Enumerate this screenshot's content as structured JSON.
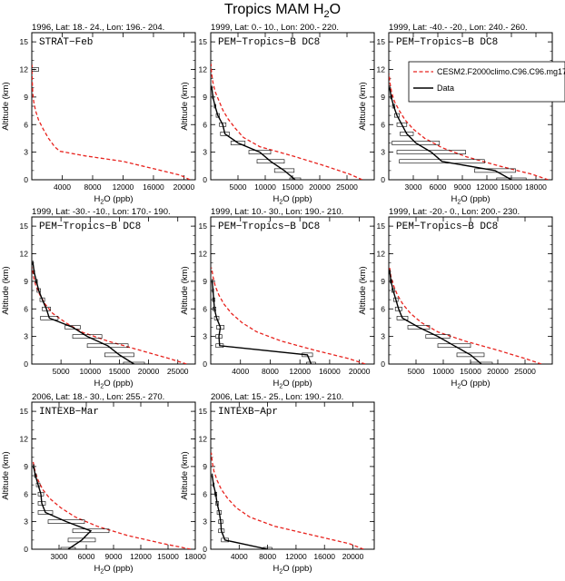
{
  "page": {
    "title_main": "Tropics MAM H",
    "title_sub": "2",
    "title_tail": "O"
  },
  "legend": {
    "model": {
      "label": "CESM2.F2000climo.C96.C96.mg17",
      "color": "#e8231e"
    },
    "obs": {
      "label": "Data",
      "color": "#000000"
    }
  },
  "chart_data": [
    {
      "type": "line",
      "title": "1996, Lat: 18.- 24., Lon: 196.- 204.",
      "label": "STRAT−Feb",
      "xlabel_main": "H",
      "xlabel_sub": "2",
      "xlabel_tail": "O (ppb)",
      "ylabel": "Altitude (km)",
      "xlim": [
        0,
        21500
      ],
      "ylim": [
        0,
        16
      ],
      "xticks": [
        4000,
        8000,
        12000,
        16000,
        20000
      ],
      "yticks": [
        0,
        3,
        6,
        9,
        12,
        15
      ],
      "model": {
        "x": [
          20800,
          19500,
          16000,
          12000,
          7000,
          3700,
          3000,
          2200,
          1500,
          900,
          500,
          250,
          120,
          50,
          20
        ],
        "y": [
          0,
          0.5,
          1.2,
          2,
          2.6,
          3.1,
          3.6,
          4.5,
          5.5,
          6.5,
          7.5,
          8.5,
          9.5,
          11,
          12.5
        ]
      },
      "data": {
        "x": [
          300
        ],
        "y": [
          12
        ],
        "err": [
          600
        ]
      }
    },
    {
      "type": "line",
      "title": "1999, Lat: 0.- 10., Lon: 200.- 220.",
      "label": "PEM−Tropics−B DC8",
      "xlabel_main": "H",
      "xlabel_sub": "2",
      "xlabel_tail": "O (ppb)",
      "ylabel": "Altitude (km)",
      "xlim": [
        0,
        30000
      ],
      "ylim": [
        0,
        16
      ],
      "xticks": [
        5000,
        10000,
        15000,
        20000,
        25000
      ],
      "yticks": [
        0,
        3,
        6,
        9,
        12,
        15
      ],
      "model": {
        "x": [
          27800,
          25500,
          21000,
          15000,
          9000,
          6000,
          4500,
          3200,
          2200,
          1500,
          800,
          400,
          150,
          50
        ],
        "y": [
          0,
          0.6,
          1.5,
          2.6,
          3.6,
          4.6,
          5.6,
          6.6,
          7.6,
          8.6,
          9.6,
          10.6,
          11.6,
          12.6
        ]
      },
      "data": {
        "x": [
          15500,
          13500,
          11000,
          9000,
          5000,
          2600,
          2200,
          1300,
          800,
          400,
          200
        ],
        "y": [
          0,
          1,
          2,
          3,
          4,
          5,
          6,
          7,
          8,
          9,
          10
        ],
        "err": [
          1000,
          1800,
          2500,
          2000,
          1300,
          800,
          600,
          300,
          150,
          80,
          50
        ]
      }
    },
    {
      "type": "line",
      "title": "1999, Lat: -40.- -20., Lon: 240.- 260.",
      "label": "PEM−Tropics−B DC8",
      "xlabel_main": "H",
      "xlabel_sub": "2",
      "xlabel_tail": "O (ppb)",
      "ylabel": "Altitude (km)",
      "xlim": [
        0,
        20000
      ],
      "ylim": [
        0,
        16
      ],
      "xticks": [
        3000,
        6000,
        9000,
        12000,
        15000,
        18000
      ],
      "yticks": [
        0,
        3,
        6,
        9,
        12,
        15
      ],
      "model": {
        "x": [
          19500,
          17500,
          13500,
          9500,
          6500,
          4400,
          3000,
          2000,
          1300,
          700,
          350,
          150,
          50
        ],
        "y": [
          0,
          0.6,
          1.5,
          2.5,
          3.5,
          4.5,
          5.5,
          6.5,
          7.5,
          8.5,
          9.5,
          10.5,
          11.5
        ]
      },
      "data": {
        "x": [
          15000,
          13000,
          6500,
          5200,
          3300,
          2200,
          1600,
          1000,
          600,
          300,
          100
        ],
        "y": [
          0,
          1,
          2,
          3,
          4,
          5,
          6,
          7,
          8,
          9,
          10
        ],
        "err": [
          1800,
          2500,
          5200,
          4200,
          2900,
          800,
          600,
          300,
          150,
          80,
          50
        ]
      }
    },
    {
      "type": "line",
      "title": "1999, Lat: -30.- -10., Lon: 170.- 190.",
      "label": "PEM−Tropics−B DC8",
      "xlabel_main": "H",
      "xlabel_sub": "2",
      "xlabel_tail": "O (ppb)",
      "ylabel": "Altitude (km)",
      "xlim": [
        0,
        28000
      ],
      "ylim": [
        0,
        16
      ],
      "xticks": [
        5000,
        10000,
        15000,
        20000,
        25000
      ],
      "yticks": [
        0,
        3,
        6,
        9,
        12,
        15
      ],
      "model": {
        "x": [
          26500,
          23500,
          18500,
          13000,
          8500,
          5800,
          3600,
          2300,
          1400,
          700,
          300,
          100
        ],
        "y": [
          0,
          0.6,
          1.5,
          2.5,
          3.5,
          4.5,
          5.5,
          6.5,
          7.5,
          8.5,
          9.5,
          10.5
        ]
      },
      "data": {
        "x": [
          17500,
          15000,
          13000,
          9500,
          7000,
          3000,
          2500,
          1800,
          1200,
          800,
          400,
          200
        ],
        "y": [
          0,
          1,
          2,
          3,
          4,
          5,
          6,
          7,
          8,
          9,
          10,
          11
        ],
        "err": [
          1800,
          2500,
          3500,
          2500,
          1300,
          1500,
          700,
          400,
          300,
          150,
          80,
          50
        ]
      }
    },
    {
      "type": "line",
      "title": "1999, Lat: 10.- 30., Lon: 190.- 210.",
      "label": "PEM−Tropics−B DC8",
      "xlabel_main": "H",
      "xlabel_sub": "2",
      "xlabel_tail": "O (ppb)",
      "ylabel": "Altitude (km)",
      "xlim": [
        0,
        22000
      ],
      "ylim": [
        0,
        16
      ],
      "xticks": [
        4000,
        8000,
        12000,
        16000,
        20000
      ],
      "yticks": [
        0,
        3,
        6,
        9,
        12,
        15
      ],
      "model": {
        "x": [
          20800,
          18500,
          14000,
          9500,
          6200,
          4200,
          2800,
          1800,
          1100,
          600,
          300,
          100
        ],
        "y": [
          0,
          0.6,
          1.5,
          2.5,
          3.5,
          4.5,
          5.5,
          6.5,
          7.5,
          8.5,
          9.5,
          10.5
        ]
      },
      "data": {
        "x": [
          13500,
          13000,
          1200,
          1100,
          1300,
          800,
          500,
          400,
          300,
          200
        ],
        "y": [
          0,
          1,
          2,
          3,
          4,
          5,
          6,
          7,
          8,
          9
        ],
        "err": [
          600,
          700,
          500,
          400,
          500,
          300,
          200,
          150,
          80,
          50
        ]
      }
    },
    {
      "type": "line",
      "title": "1999, Lat: -20.- 0., Lon: 200.- 230.",
      "label": "PEM−Tropics−B DC8",
      "xlabel_main": "H",
      "xlabel_sub": "2",
      "xlabel_tail": "O (ppb)",
      "ylabel": "Altitude (km)",
      "xlim": [
        0,
        30000
      ],
      "ylim": [
        0,
        16
      ],
      "xticks": [
        5000,
        10000,
        15000,
        20000,
        25000
      ],
      "yticks": [
        0,
        3,
        6,
        9,
        12,
        15
      ],
      "model": {
        "x": [
          28000,
          25000,
          20000,
          14000,
          9000,
          6000,
          4000,
          2600,
          1600,
          900,
          400,
          150
        ],
        "y": [
          0,
          0.6,
          1.5,
          2.5,
          3.5,
          4.5,
          5.5,
          6.5,
          7.5,
          8.5,
          9.5,
          10.5
        ]
      },
      "data": {
        "x": [
          17000,
          15000,
          12000,
          9000,
          5500,
          2500,
          1800,
          1300,
          800,
          400,
          200
        ],
        "y": [
          0,
          1,
          2,
          3,
          4,
          5,
          6,
          7,
          8,
          9,
          10
        ],
        "err": [
          2000,
          2500,
          3000,
          2200,
          2000,
          1000,
          600,
          400,
          250,
          150,
          80
        ]
      }
    },
    {
      "type": "line",
      "title": "2006, Lat: 18.- 30., Lon: 255.- 270.",
      "label": "INTEXB−Mar",
      "xlabel_main": "H",
      "xlabel_sub": "2",
      "xlabel_tail": "O (ppb)",
      "ylabel": "Altitude (km)",
      "xlim": [
        0,
        18000
      ],
      "ylim": [
        0,
        16
      ],
      "xticks": [
        3000,
        6000,
        9000,
        12000,
        15000,
        18000
      ],
      "yticks": [
        0,
        3,
        6,
        9,
        12,
        15
      ],
      "model": {
        "x": [
          17500,
          14500,
          10500,
          7200,
          4800,
          3200,
          2000,
          1200,
          700,
          350,
          150
        ],
        "y": [
          0,
          0.6,
          1.5,
          2.5,
          3.5,
          4.5,
          5.5,
          6.5,
          7.5,
          8.5,
          9.5
        ]
      },
      "data": {
        "x": [
          4000,
          5500,
          6500,
          3800,
          1500,
          1100,
          1000,
          700,
          400,
          200
        ],
        "y": [
          0,
          1,
          2,
          3,
          4,
          5,
          6,
          7,
          8,
          9
        ],
        "err": [
          800,
          1500,
          2000,
          2000,
          800,
          400,
          300,
          200,
          100,
          50
        ]
      }
    },
    {
      "type": "line",
      "title": "2006, Lat: 15.- 25., Lon: 190.- 210.",
      "label": "INTEXB−Apr",
      "xlabel_main": "H",
      "xlabel_sub": "2",
      "xlabel_tail": "O (ppb)",
      "ylabel": "Altitude (km)",
      "xlim": [
        0,
        23000
      ],
      "ylim": [
        0,
        16
      ],
      "xticks": [
        4000,
        8000,
        12000,
        16000,
        20000
      ],
      "yticks": [
        0,
        3,
        6,
        9,
        12,
        15
      ],
      "model": {
        "x": [
          21500,
          19500,
          14500,
          9000,
          5500,
          3600,
          2400,
          1500,
          900,
          450,
          200,
          80
        ],
        "y": [
          0,
          0.6,
          1.5,
          2.5,
          3.5,
          4.5,
          5.5,
          6.5,
          7.5,
          8.5,
          9.5,
          10.5
        ]
      },
      "data": {
        "x": [
          8000,
          2000,
          1500,
          1400,
          1200,
          900,
          700,
          400,
          200
        ],
        "y": [
          0,
          1,
          2,
          3,
          4,
          5,
          6,
          7,
          8
        ],
        "err": [
          600,
          500,
          400,
          300,
          300,
          200,
          150,
          80,
          50
        ]
      }
    }
  ]
}
